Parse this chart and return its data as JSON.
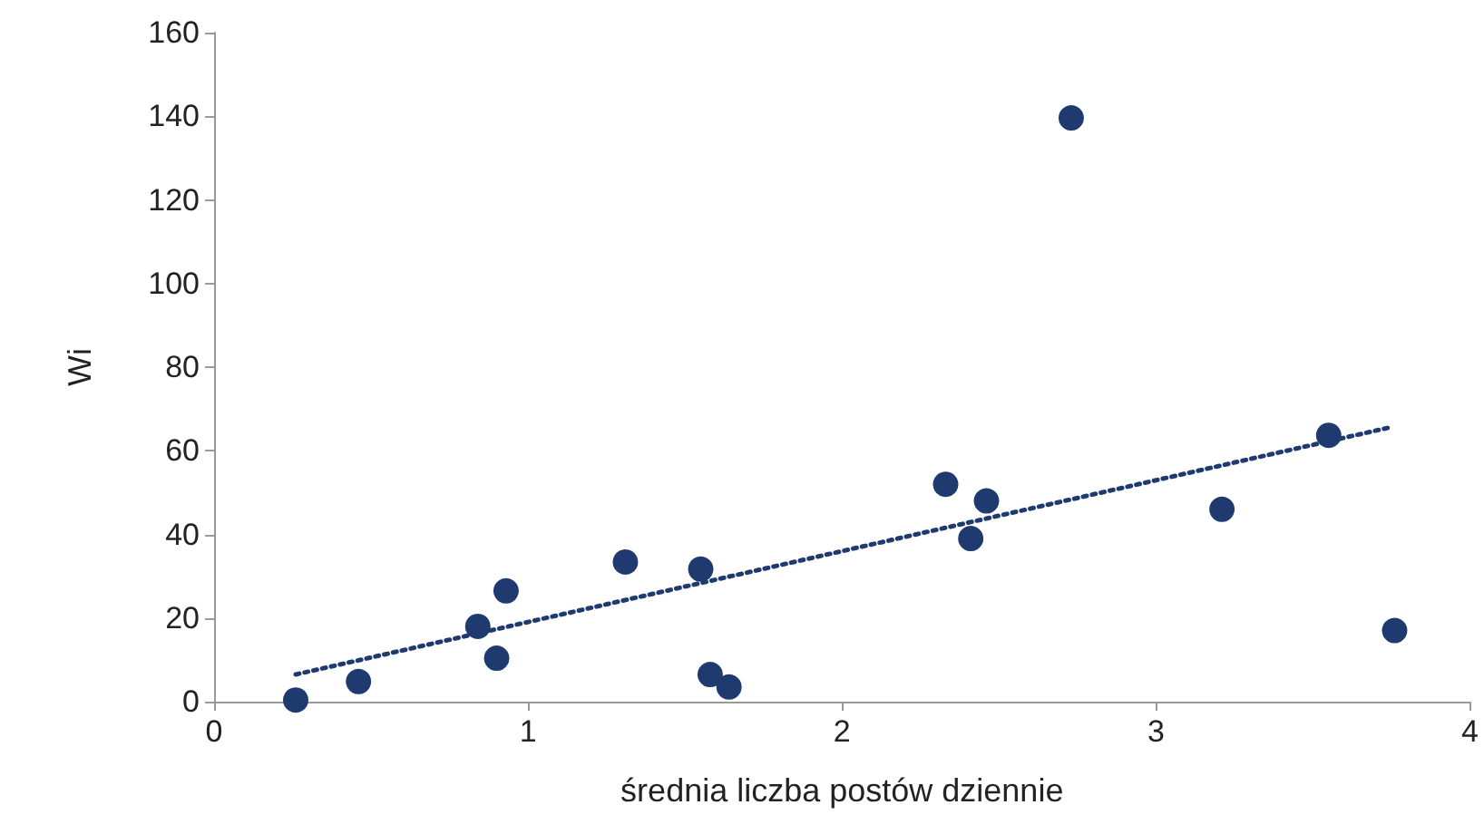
{
  "chart_data": {
    "type": "scatter",
    "xlabel": "średnia liczba postów dziennie",
    "ylabel": "Wi",
    "xlim": [
      0,
      4
    ],
    "xticks": [
      0,
      1,
      2,
      3,
      4
    ],
    "ylim": [
      0,
      160
    ],
    "yticks": [
      0,
      20,
      40,
      60,
      80,
      100,
      120,
      140,
      160
    ],
    "grid": false,
    "marker": "circle",
    "series": [
      {
        "color": "#1f3a6e",
        "x": [
          0.26,
          0.46,
          0.84,
          0.9,
          0.93,
          1.31,
          1.55,
          1.58,
          1.64,
          2.33,
          2.41,
          2.46,
          2.73,
          3.21,
          3.55,
          3.76
        ],
        "values": [
          0.4,
          4.8,
          18,
          10.4,
          26.5,
          33.4,
          31.7,
          6.5,
          3.5,
          52,
          39,
          48,
          139.6,
          46,
          63.7,
          17
        ]
      },
      {
        "type": "line",
        "color": "#1f3a6e",
        "line_style": "dotted",
        "marker": "none",
        "x": [
          0.26,
          3.74
        ],
        "values": [
          6.5,
          65.5
        ]
      }
    ]
  }
}
